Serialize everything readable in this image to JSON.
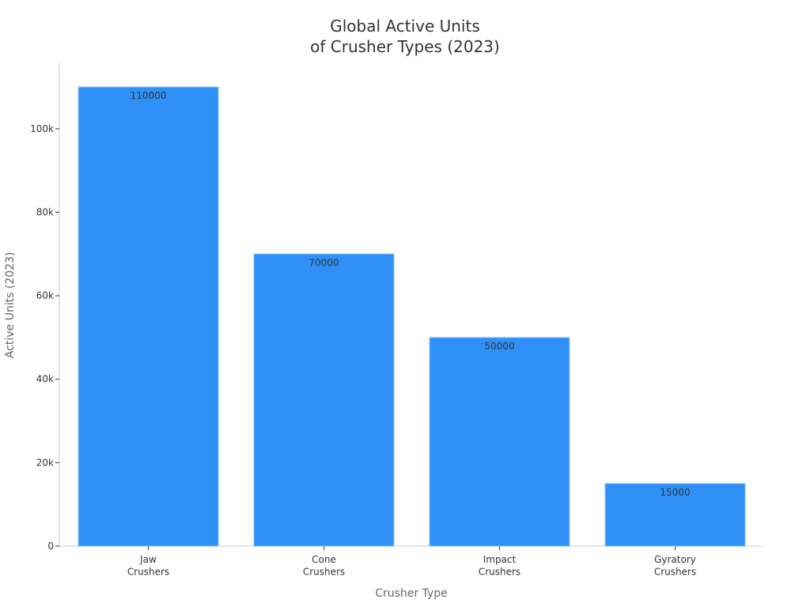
{
  "chart_data": {
    "type": "bar",
    "title": "Global Active Units\nof Crusher Types (2023)",
    "x_label": "Crusher Type",
    "y_label": "Active Units (2023)",
    "categories": [
      "Jaw\nCrushers",
      "Cone\nCrushers",
      "Impact\nCrushers",
      "Gyratory\nCrushers"
    ],
    "values": [
      110000,
      70000,
      50000,
      15000
    ],
    "color": "#2f91f8",
    "ylim": [
      0,
      115500
    ],
    "yticks": [
      0,
      {
        "value": 20000,
        "label": "20k"
      },
      {
        "value": 40000,
        "label": "40k"
      },
      {
        "value": 60000,
        "label": "60k"
      },
      {
        "value": 80000,
        "label": "80k"
      },
      {
        "value": 100000,
        "label": "100k"
      }
    ],
    "grid": false
  }
}
